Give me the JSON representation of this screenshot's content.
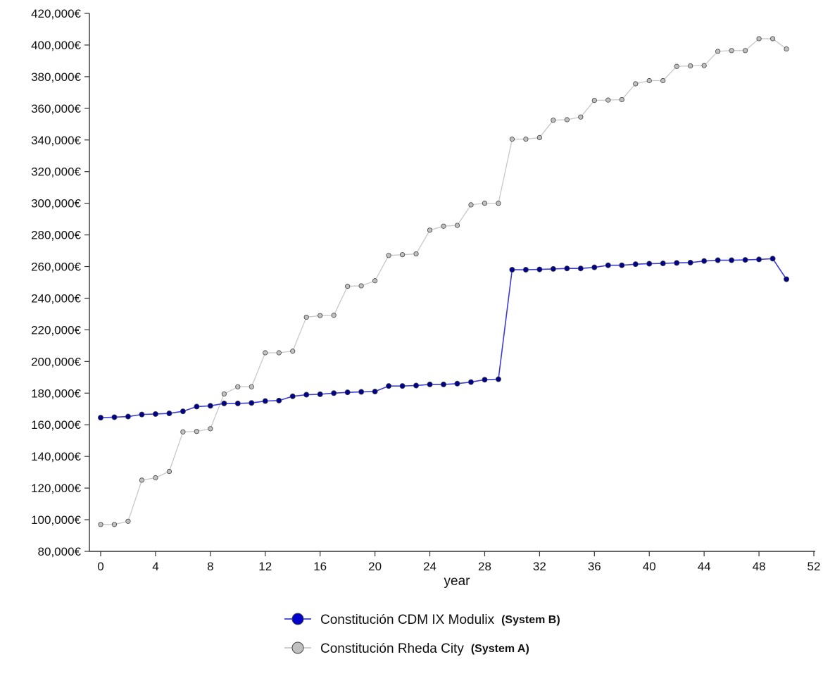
{
  "chart_data": {
    "type": "line",
    "xlabel": "year",
    "ylabel": "",
    "xlim": [
      0,
      52
    ],
    "ylim": [
      80000,
      420000
    ],
    "x_ticks": [
      0,
      4,
      8,
      12,
      16,
      20,
      24,
      28,
      32,
      36,
      40,
      44,
      48,
      52
    ],
    "y_ticks": [
      80000,
      100000,
      120000,
      140000,
      160000,
      180000,
      200000,
      220000,
      240000,
      260000,
      280000,
      300000,
      320000,
      340000,
      360000,
      380000,
      400000,
      420000
    ],
    "x_tick_labels": [
      "0",
      "4",
      "8",
      "12",
      "16",
      "20",
      "24",
      "28",
      "32",
      "36",
      "40",
      "44",
      "48",
      "52"
    ],
    "y_tick_labels": [
      "80,000€",
      "100,000€",
      "120,000€",
      "140,000€",
      "160,000€",
      "180,000€",
      "200,000€",
      "220,000€",
      "240,000€",
      "260,000€",
      "280,000€",
      "300,000€",
      "320,000€",
      "340,000€",
      "360,000€",
      "380,000€",
      "400,000€",
      "420,000€"
    ],
    "grid": false,
    "legend_position": "bottom-center",
    "x": [
      0,
      1,
      2,
      3,
      4,
      5,
      6,
      7,
      8,
      9,
      10,
      11,
      12,
      13,
      14,
      15,
      16,
      17,
      18,
      19,
      20,
      21,
      22,
      23,
      24,
      25,
      26,
      27,
      28,
      29,
      30,
      31,
      32,
      33,
      34,
      35,
      36,
      37,
      38,
      39,
      40,
      41,
      42,
      43,
      44,
      45,
      46,
      47,
      48,
      49,
      50
    ],
    "series": [
      {
        "name": "Constitución CDM IX Modulix",
        "tag": "(System B)",
        "color": "#00008b",
        "line_color": "#3b3bd6",
        "values": [
          164500,
          164800,
          165200,
          166500,
          166800,
          167200,
          168500,
          171500,
          172000,
          173500,
          173500,
          173800,
          175000,
          175300,
          178000,
          179000,
          179300,
          180000,
          180500,
          180800,
          181000,
          184500,
          184500,
          184800,
          185500,
          185500,
          186000,
          187000,
          188500,
          188800,
          258000,
          258000,
          258200,
          258500,
          258800,
          258800,
          259500,
          260800,
          260800,
          261500,
          261800,
          262000,
          262300,
          262500,
          263500,
          264000,
          264000,
          264200,
          264500,
          265000,
          252000
        ]
      },
      {
        "name": "Constitución Rheda City",
        "tag": "(System A)",
        "color": "#c0c0c0",
        "line_color": "#c8c8c8",
        "values": [
          97000,
          97000,
          99000,
          125000,
          126500,
          130500,
          155500,
          155800,
          157500,
          179500,
          184000,
          184000,
          205500,
          205500,
          206500,
          228000,
          229000,
          229200,
          247500,
          247800,
          251000,
          267000,
          267500,
          268000,
          283000,
          285500,
          286000,
          299000,
          300000,
          300000,
          340500,
          340500,
          341500,
          352500,
          352800,
          354500,
          365000,
          365200,
          365500,
          375500,
          377500,
          377500,
          386500,
          386800,
          387000,
          396000,
          396500,
          396500,
          404000,
          404000,
          397500
        ]
      }
    ]
  }
}
